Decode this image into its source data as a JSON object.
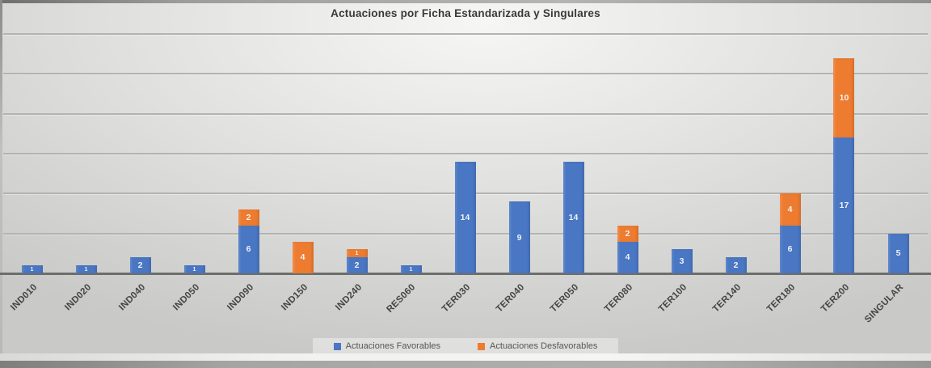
{
  "chart_data": {
    "type": "bar",
    "stacked": true,
    "title": "Actuaciones por Ficha Estandarizada y Singulares",
    "categories": [
      "IND010",
      "IND020",
      "IND040",
      "IND050",
      "IND090",
      "IND150",
      "IND240",
      "RES060",
      "TER030",
      "TER040",
      "TER050",
      "TER080",
      "TER100",
      "TER140",
      "TER180",
      "TER200",
      "SINGULAR"
    ],
    "series": [
      {
        "name": "Actuaciones Favorables",
        "color": "#4a77c4",
        "values": [
          1,
          1,
          2,
          1,
          6,
          0,
          2,
          1,
          14,
          9,
          14,
          4,
          3,
          2,
          6,
          17,
          5
        ]
      },
      {
        "name": "Actuaciones Desfavorables",
        "color": "#ee7c30",
        "values": [
          0,
          0,
          0,
          0,
          2,
          4,
          1,
          0,
          0,
          0,
          0,
          2,
          0,
          0,
          4,
          10,
          0
        ]
      }
    ],
    "data_labels": true,
    "ylim": [
      0,
      30
    ],
    "gridline_step": 5,
    "grid": "horizontal",
    "legend_position": "bottom",
    "xlabel": "",
    "ylabel": ""
  }
}
